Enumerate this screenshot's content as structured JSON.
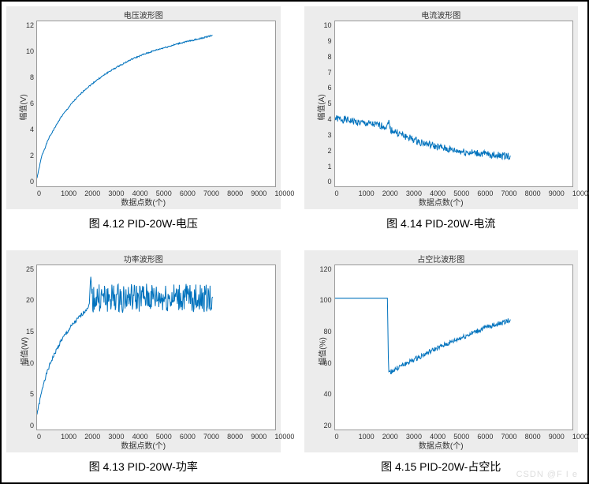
{
  "watermark": "CSDN @F I e",
  "shared": {
    "xlabel": "数据点数(个)",
    "xlim": [
      0,
      10000
    ],
    "xticks": [
      "0",
      "1000",
      "2000",
      "3000",
      "4000",
      "5000",
      "6000",
      "7000",
      "8000",
      "9000",
      "10000"
    ],
    "line_color": "#0072bd",
    "plot_bg": "#ffffff",
    "axes_bg": "#ececec",
    "grid_color": "#cccccc"
  },
  "p1": {
    "title": "电压波形图",
    "ylabel": "幅值(V)",
    "caption": "图 4.12 PID-20W-电压",
    "ylim": [
      0,
      12
    ],
    "yticks": [
      "12",
      "10",
      "8",
      "6",
      "4",
      "2",
      "0"
    ],
    "type": "line",
    "data_xmax": 7400,
    "points": [
      [
        0,
        0.6
      ],
      [
        200,
        2.2
      ],
      [
        500,
        3.5
      ],
      [
        1000,
        5.0
      ],
      [
        1500,
        6.1
      ],
      [
        2000,
        7.0
      ],
      [
        2500,
        7.7
      ],
      [
        3000,
        8.3
      ],
      [
        3500,
        8.8
      ],
      [
        4000,
        9.25
      ],
      [
        4500,
        9.6
      ],
      [
        5000,
        9.9
      ],
      [
        5500,
        10.15
      ],
      [
        6000,
        10.4
      ],
      [
        6500,
        10.6
      ],
      [
        7000,
        10.8
      ],
      [
        7400,
        11.0
      ]
    ],
    "noise": 0.05
  },
  "p2": {
    "title": "电流波形图",
    "ylabel": "幅值(A)",
    "caption": "图 4.14 PID-20W-电流",
    "ylim": [
      0,
      10
    ],
    "yticks": [
      "10",
      "9",
      "8",
      "7",
      "6",
      "5",
      "4",
      "3",
      "2",
      "1",
      "0"
    ],
    "type": "line",
    "data_xmax": 7400,
    "points": [
      [
        0,
        4.1
      ],
      [
        500,
        4.0
      ],
      [
        1000,
        3.85
      ],
      [
        1500,
        3.75
      ],
      [
        2000,
        3.65
      ],
      [
        2200,
        3.6
      ],
      [
        2250,
        4.1
      ],
      [
        2300,
        3.45
      ],
      [
        2800,
        3.1
      ],
      [
        3500,
        2.7
      ],
      [
        4200,
        2.4
      ],
      [
        5000,
        2.15
      ],
      [
        5800,
        2.0
      ],
      [
        6500,
        1.9
      ],
      [
        7000,
        1.85
      ],
      [
        7400,
        1.8
      ]
    ],
    "noise": 0.22
  },
  "p3": {
    "title": "功率波形图",
    "ylabel": "幅值(W)",
    "caption": "图 4.13 PID-20W-功率",
    "ylim": [
      0,
      25
    ],
    "yticks": [
      "25",
      "20",
      "15",
      "10",
      "5",
      "0"
    ],
    "type": "line",
    "data_xmax": 7400,
    "points": [
      [
        0,
        2.5
      ],
      [
        300,
        7.5
      ],
      [
        600,
        10.5
      ],
      [
        1000,
        13.5
      ],
      [
        1500,
        16.0
      ],
      [
        2000,
        18.0
      ],
      [
        2200,
        19.0
      ],
      [
        2250,
        23.5
      ],
      [
        2300,
        20.0
      ],
      [
        3000,
        20.0
      ],
      [
        4000,
        20.0
      ],
      [
        5000,
        20.0
      ],
      [
        6000,
        20.0
      ],
      [
        7000,
        20.0
      ],
      [
        7400,
        20.0
      ]
    ],
    "noise_ranges": [
      [
        0,
        2250,
        0.3
      ],
      [
        2250,
        7400,
        2.2
      ]
    ]
  },
  "p4": {
    "title": "占空比波形图",
    "ylabel": "幅值(%)",
    "caption": "图 4.15 PID-20W-占空比",
    "ylim": [
      20,
      120
    ],
    "yticks": [
      "120",
      "100",
      "80",
      "60",
      "40",
      "20"
    ],
    "type": "line",
    "data_xmax": 7400,
    "points": [
      [
        0,
        100
      ],
      [
        2100,
        100
      ],
      [
        2200,
        100
      ],
      [
        2250,
        55
      ],
      [
        2300,
        55
      ],
      [
        2800,
        59
      ],
      [
        3500,
        64
      ],
      [
        4200,
        69
      ],
      [
        5000,
        74
      ],
      [
        5800,
        79
      ],
      [
        6500,
        83
      ],
      [
        7000,
        85
      ],
      [
        7400,
        87
      ]
    ],
    "noise_ranges": [
      [
        0,
        2200,
        0
      ],
      [
        2250,
        7400,
        1.5
      ]
    ]
  }
}
